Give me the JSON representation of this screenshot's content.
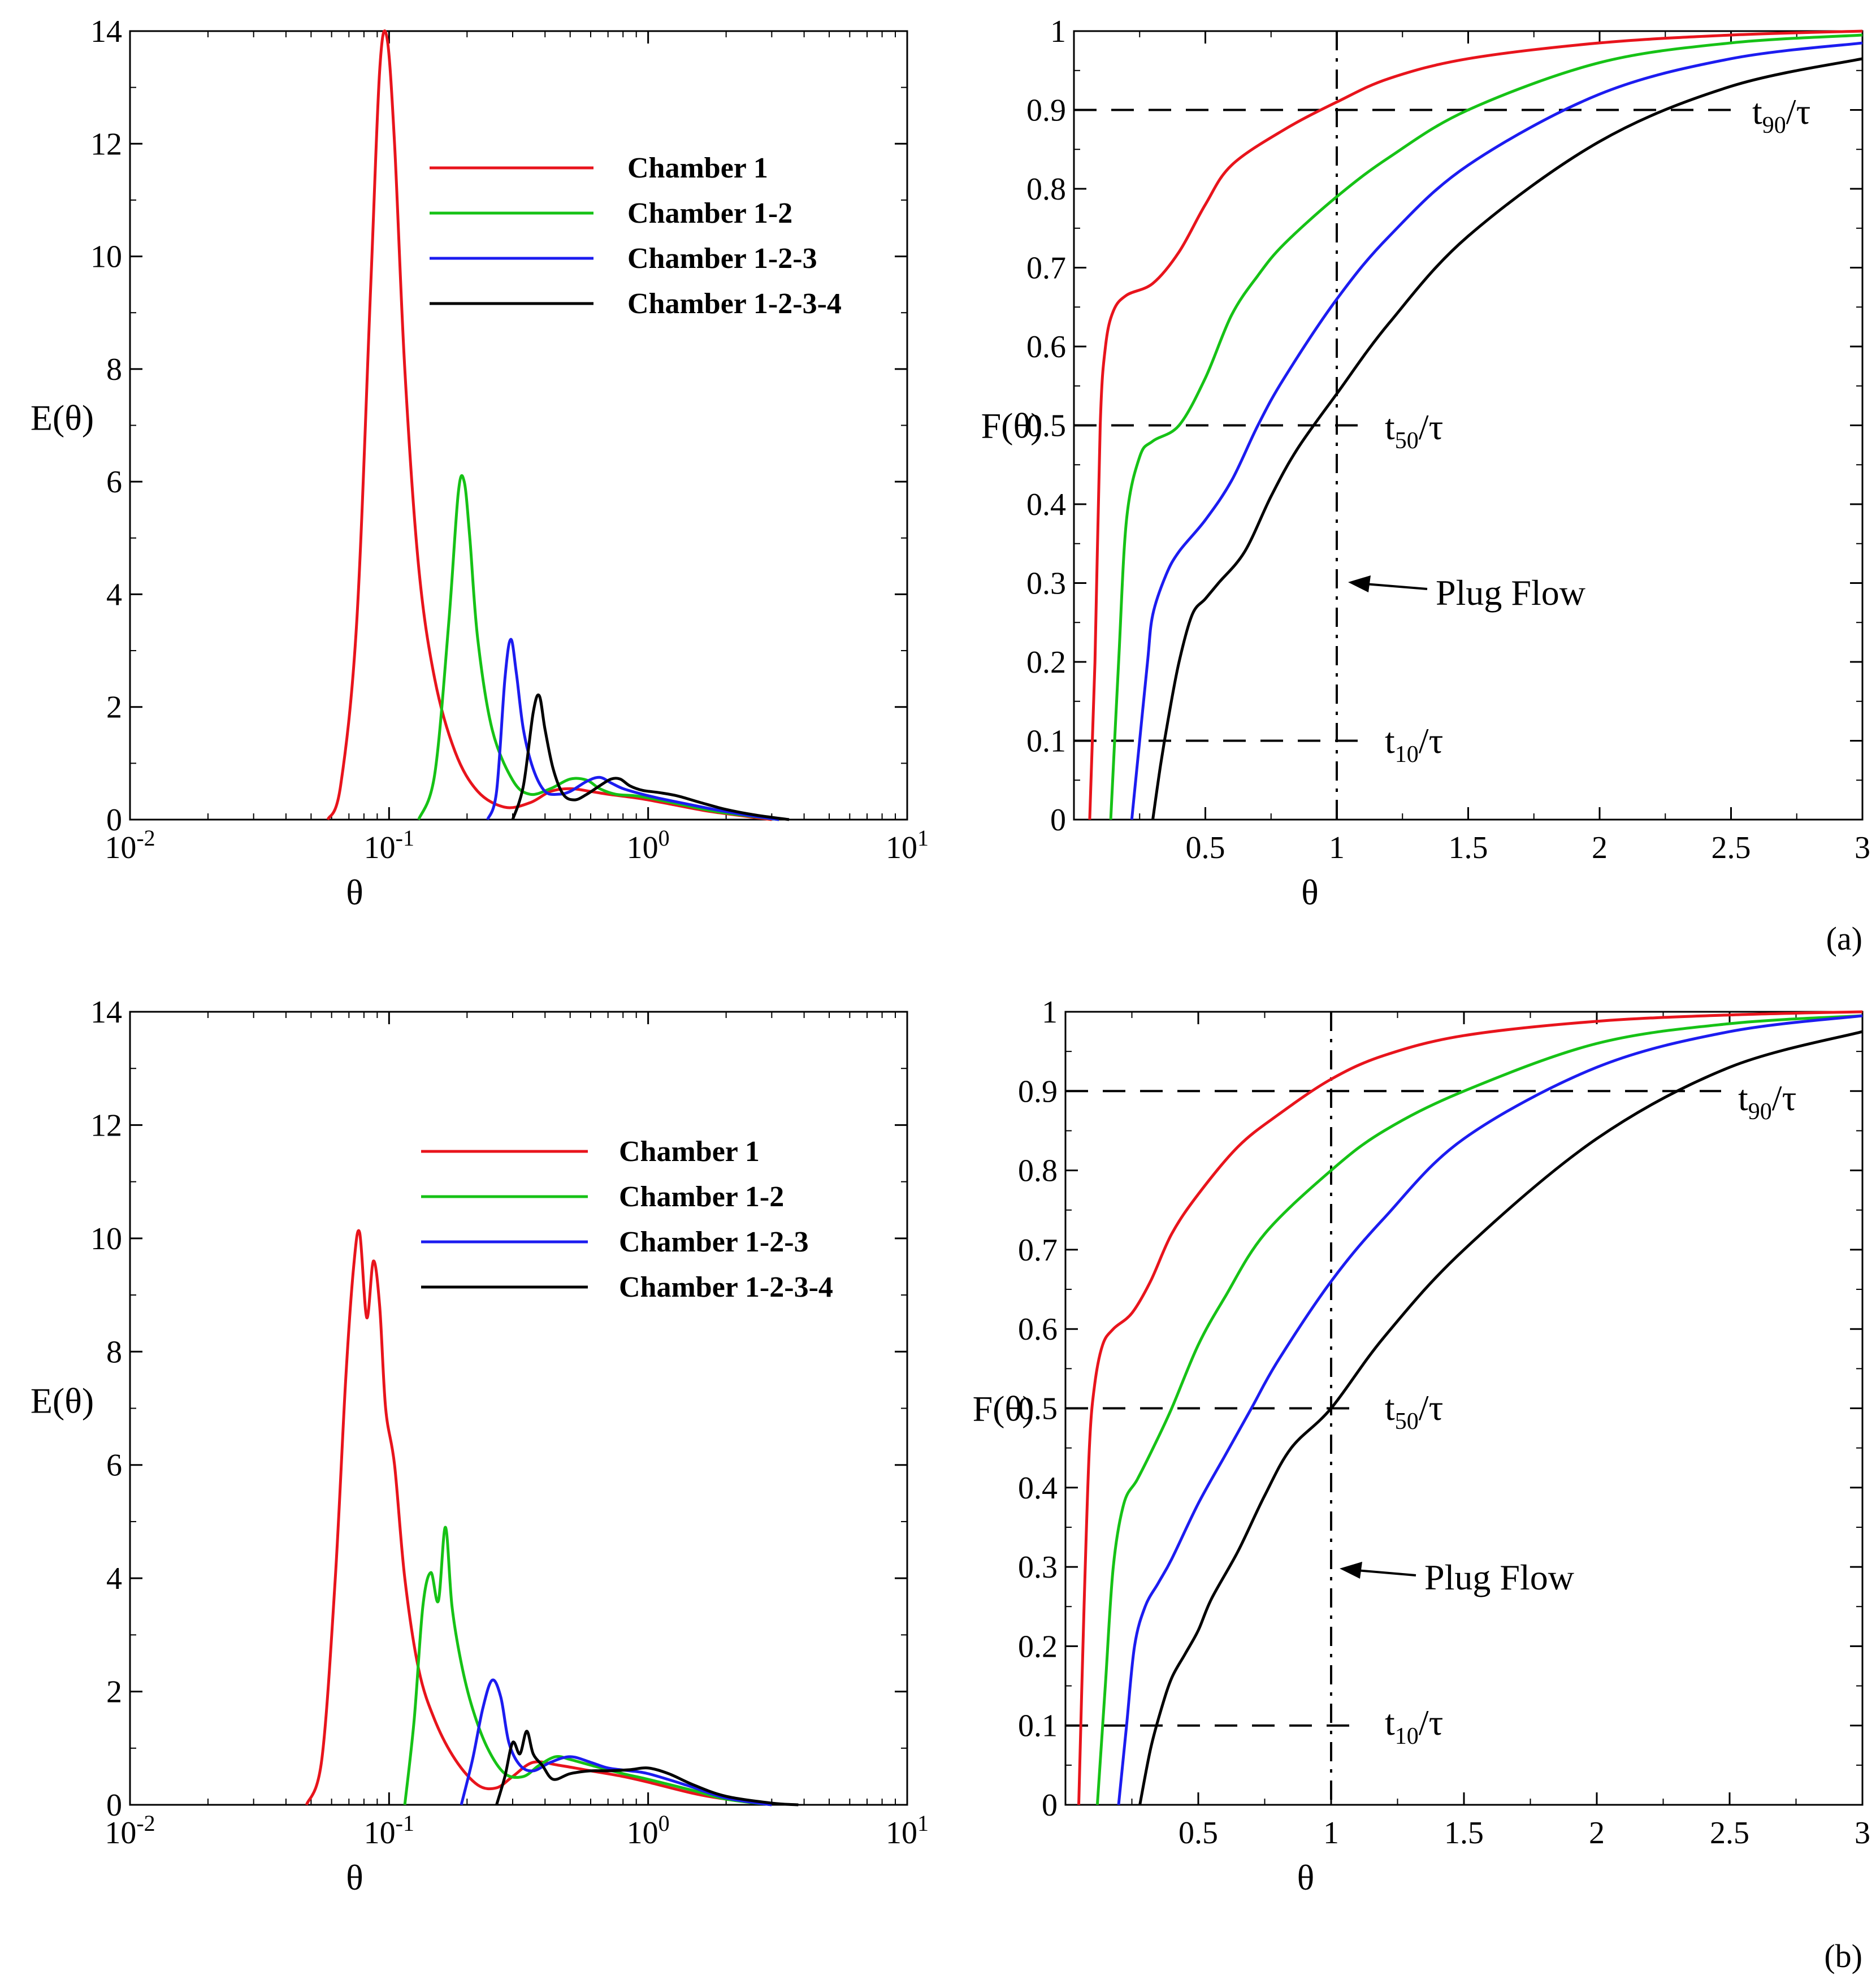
{
  "colors": {
    "chamber1": "#e8141c",
    "chamber12": "#16c216",
    "chamber123": "#1c1cf0",
    "chamber1234": "#000000"
  },
  "legend": [
    "Chamber 1",
    "Chamber 1-2",
    "Chamber 1-2-3",
    "Chamber 1-2-3-4"
  ],
  "panels": [
    {
      "label": "(a)"
    },
    {
      "label": "(b)"
    }
  ],
  "chart_data": [
    {
      "panel": "a-left",
      "type": "line",
      "xlabel": "θ",
      "ylabel": "E(θ)",
      "xscale": "log",
      "xlim": [
        0.01,
        10
      ],
      "ylim": [
        0,
        14
      ],
      "yticks": [
        "0",
        "2",
        "4",
        "6",
        "8",
        "10",
        "12",
        "14"
      ],
      "xticks": [
        {
          "base": "10",
          "exp": "-2"
        },
        {
          "base": "10",
          "exp": "-1"
        },
        {
          "base": "10",
          "exp": "0"
        },
        {
          "base": "10",
          "exp": "1"
        }
      ],
      "series": [
        {
          "name": "Chamber 1",
          "x": [
            0.058,
            0.065,
            0.075,
            0.085,
            0.092,
            0.098,
            0.105,
            0.115,
            0.13,
            0.15,
            0.18,
            0.22,
            0.28,
            0.35,
            0.42,
            0.5,
            0.6,
            0.7,
            0.85,
            1.0,
            1.3,
            1.7,
            2.2,
            3.0
          ],
          "y": [
            0,
            0.6,
            3.5,
            9.5,
            13.3,
            13.9,
            12.0,
            8.0,
            4.5,
            2.5,
            1.2,
            0.5,
            0.22,
            0.3,
            0.5,
            0.55,
            0.5,
            0.45,
            0.4,
            0.35,
            0.25,
            0.15,
            0.08,
            0
          ]
        },
        {
          "name": "Chamber 1-2",
          "x": [
            0.13,
            0.15,
            0.17,
            0.185,
            0.195,
            0.205,
            0.22,
            0.25,
            0.3,
            0.35,
            0.42,
            0.5,
            0.58,
            0.65,
            0.75,
            0.9,
            1.1,
            1.4,
            1.8,
            2.4,
            3.2
          ],
          "y": [
            0,
            0.8,
            3.5,
            5.8,
            6.0,
            5.0,
            3.2,
            1.6,
            0.7,
            0.45,
            0.55,
            0.72,
            0.7,
            0.55,
            0.45,
            0.42,
            0.35,
            0.25,
            0.15,
            0.07,
            0
          ]
        },
        {
          "name": "Chamber 1-2-3",
          "x": [
            0.24,
            0.26,
            0.28,
            0.295,
            0.31,
            0.33,
            0.36,
            0.4,
            0.45,
            0.5,
            0.58,
            0.65,
            0.72,
            0.8,
            0.95,
            1.1,
            1.4,
            1.8,
            2.4,
            3.2
          ],
          "y": [
            0,
            0.5,
            2.5,
            3.2,
            2.6,
            1.6,
            0.9,
            0.5,
            0.45,
            0.5,
            0.68,
            0.75,
            0.65,
            0.55,
            0.45,
            0.38,
            0.28,
            0.18,
            0.08,
            0
          ]
        },
        {
          "name": "Chamber 1-2-3-4",
          "x": [
            0.3,
            0.33,
            0.36,
            0.38,
            0.4,
            0.43,
            0.47,
            0.52,
            0.58,
            0.65,
            0.72,
            0.78,
            0.85,
            0.95,
            1.1,
            1.3,
            1.6,
            2.0,
            2.6,
            3.5
          ],
          "y": [
            0,
            0.6,
            1.9,
            2.2,
            1.6,
            0.9,
            0.45,
            0.35,
            0.45,
            0.6,
            0.72,
            0.72,
            0.6,
            0.52,
            0.48,
            0.42,
            0.3,
            0.18,
            0.08,
            0
          ]
        }
      ]
    },
    {
      "panel": "a-right",
      "type": "line",
      "xlabel": "θ",
      "ylabel": "F(θ)",
      "xlim": [
        0,
        3
      ],
      "ylim": [
        0,
        1
      ],
      "yticks": [
        "0",
        "0.1",
        "0.2",
        "0.3",
        "0.4",
        "0.5",
        "0.6",
        "0.7",
        "0.8",
        "0.9",
        "1"
      ],
      "xticks": [
        "0.5",
        "1",
        "1.5",
        "2",
        "2.5",
        "3"
      ],
      "annotations": {
        "t90": "t",
        "t90sub": "90",
        "t50": "t",
        "t50sub": "50",
        "t10": "t",
        "t10sub": "10",
        "tau": "/τ",
        "plug": "Plug Flow"
      },
      "series": [
        {
          "name": "Chamber 1",
          "x": [
            0.06,
            0.08,
            0.1,
            0.12,
            0.15,
            0.2,
            0.3,
            0.4,
            0.5,
            0.6,
            0.8,
            1.0,
            1.2,
            1.5,
            2.0,
            2.5,
            3.0
          ],
          "y": [
            0,
            0.2,
            0.5,
            0.6,
            0.645,
            0.665,
            0.68,
            0.72,
            0.78,
            0.83,
            0.875,
            0.91,
            0.94,
            0.965,
            0.985,
            0.995,
            1.0
          ]
        },
        {
          "name": "Chamber 1-2",
          "x": [
            0.14,
            0.17,
            0.2,
            0.25,
            0.3,
            0.4,
            0.5,
            0.6,
            0.7,
            0.8,
            1.0,
            1.2,
            1.5,
            2.0,
            2.5,
            3.0
          ],
          "y": [
            0,
            0.2,
            0.38,
            0.46,
            0.48,
            0.5,
            0.56,
            0.64,
            0.69,
            0.73,
            0.79,
            0.84,
            0.9,
            0.96,
            0.985,
            0.995
          ]
        },
        {
          "name": "Chamber 1-2-3",
          "x": [
            0.22,
            0.25,
            0.28,
            0.3,
            0.35,
            0.4,
            0.5,
            0.6,
            0.7,
            0.8,
            1.0,
            1.2,
            1.5,
            2.0,
            2.5,
            3.0
          ],
          "y": [
            0,
            0.1,
            0.2,
            0.26,
            0.31,
            0.34,
            0.38,
            0.43,
            0.5,
            0.56,
            0.66,
            0.74,
            0.83,
            0.92,
            0.965,
            0.985
          ]
        },
        {
          "name": "Chamber 1-2-3-4",
          "x": [
            0.3,
            0.33,
            0.36,
            0.4,
            0.45,
            0.5,
            0.55,
            0.65,
            0.75,
            0.85,
            1.0,
            1.2,
            1.5,
            2.0,
            2.5,
            3.0
          ],
          "y": [
            0,
            0.07,
            0.13,
            0.2,
            0.26,
            0.28,
            0.3,
            0.34,
            0.41,
            0.47,
            0.54,
            0.63,
            0.74,
            0.86,
            0.93,
            0.965
          ]
        }
      ]
    },
    {
      "panel": "b-left",
      "type": "line",
      "xlabel": "θ",
      "ylabel": "E(θ)",
      "xscale": "log",
      "xlim": [
        0.01,
        10
      ],
      "ylim": [
        0,
        14
      ],
      "yticks": [
        "0",
        "2",
        "4",
        "6",
        "8",
        "10",
        "12",
        "14"
      ],
      "xticks": [
        {
          "base": "10",
          "exp": "-2"
        },
        {
          "base": "10",
          "exp": "-1"
        },
        {
          "base": "10",
          "exp": "0"
        },
        {
          "base": "10",
          "exp": "1"
        }
      ],
      "series": [
        {
          "name": "Chamber 1",
          "x": [
            0.048,
            0.055,
            0.062,
            0.068,
            0.073,
            0.077,
            0.082,
            0.087,
            0.092,
            0.097,
            0.105,
            0.115,
            0.13,
            0.15,
            0.18,
            0.22,
            0.26,
            0.3,
            0.36,
            0.45,
            0.6,
            0.8,
            1.0,
            1.5,
            2.0,
            3.0
          ],
          "y": [
            0,
            0.8,
            4.0,
            7.5,
            9.5,
            10.1,
            8.6,
            9.6,
            8.8,
            7.0,
            6.0,
            4.0,
            2.4,
            1.5,
            0.8,
            0.35,
            0.3,
            0.5,
            0.75,
            0.7,
            0.6,
            0.5,
            0.4,
            0.2,
            0.1,
            0
          ]
        },
        {
          "name": "Chamber 1-2",
          "x": [
            0.115,
            0.125,
            0.135,
            0.145,
            0.155,
            0.165,
            0.175,
            0.19,
            0.21,
            0.24,
            0.28,
            0.33,
            0.38,
            0.44,
            0.5,
            0.6,
            0.8,
            1.0,
            1.5,
            2.0,
            3.0
          ],
          "y": [
            0,
            1.5,
            3.5,
            4.1,
            3.6,
            4.9,
            3.5,
            2.5,
            1.7,
            1.0,
            0.55,
            0.5,
            0.7,
            0.85,
            0.8,
            0.7,
            0.55,
            0.45,
            0.25,
            0.1,
            0
          ]
        },
        {
          "name": "Chamber 1-2-3",
          "x": [
            0.19,
            0.21,
            0.23,
            0.25,
            0.27,
            0.29,
            0.32,
            0.36,
            0.42,
            0.5,
            0.6,
            0.7,
            0.85,
            1.0,
            1.4,
            2.0,
            3.0
          ],
          "y": [
            0,
            0.8,
            1.7,
            2.2,
            1.9,
            1.1,
            0.7,
            0.6,
            0.75,
            0.85,
            0.75,
            0.65,
            0.6,
            0.55,
            0.35,
            0.12,
            0
          ]
        },
        {
          "name": "Chamber 1-2-3-4",
          "x": [
            0.26,
            0.28,
            0.3,
            0.32,
            0.34,
            0.36,
            0.39,
            0.43,
            0.5,
            0.6,
            0.7,
            0.85,
            1.0,
            1.2,
            1.5,
            2.0,
            3.0,
            3.8
          ],
          "y": [
            0,
            0.5,
            1.1,
            0.9,
            1.3,
            0.9,
            0.7,
            0.45,
            0.55,
            0.6,
            0.6,
            0.62,
            0.65,
            0.55,
            0.35,
            0.15,
            0.03,
            0
          ]
        }
      ]
    },
    {
      "panel": "b-right",
      "type": "line",
      "xlabel": "θ",
      "ylabel": "F(θ)",
      "xlim": [
        0,
        3
      ],
      "ylim": [
        0,
        1
      ],
      "yticks": [
        "0",
        "0.1",
        "0.2",
        "0.3",
        "0.4",
        "0.5",
        "0.6",
        "0.7",
        "0.8",
        "0.9",
        "1"
      ],
      "xticks": [
        "0.5",
        "1",
        "1.5",
        "2",
        "2.5",
        "3"
      ],
      "annotations": {
        "t90": "t",
        "t90sub": "90",
        "t50": "t",
        "t50sub": "50",
        "t10": "t",
        "t10sub": "10",
        "tau": "/τ",
        "plug": "Plug Flow"
      },
      "series": [
        {
          "name": "Chamber 1",
          "x": [
            0.05,
            0.07,
            0.09,
            0.11,
            0.14,
            0.18,
            0.25,
            0.32,
            0.4,
            0.5,
            0.65,
            0.8,
            1.0,
            1.2,
            1.5,
            2.0,
            2.5,
            3.0
          ],
          "y": [
            0,
            0.25,
            0.45,
            0.53,
            0.58,
            0.6,
            0.62,
            0.66,
            0.72,
            0.77,
            0.83,
            0.87,
            0.915,
            0.945,
            0.97,
            0.988,
            0.996,
            1.0
          ]
        },
        {
          "name": "Chamber 1-2",
          "x": [
            0.12,
            0.15,
            0.18,
            0.22,
            0.27,
            0.33,
            0.4,
            0.5,
            0.6,
            0.75,
            1.0,
            1.2,
            1.5,
            2.0,
            2.5,
            3.0
          ],
          "y": [
            0,
            0.15,
            0.3,
            0.38,
            0.41,
            0.45,
            0.5,
            0.58,
            0.64,
            0.72,
            0.8,
            0.85,
            0.9,
            0.96,
            0.985,
            0.995
          ]
        },
        {
          "name": "Chamber 1-2-3",
          "x": [
            0.2,
            0.23,
            0.26,
            0.3,
            0.35,
            0.4,
            0.5,
            0.6,
            0.7,
            0.8,
            1.0,
            1.2,
            1.5,
            2.0,
            2.5,
            3.0
          ],
          "y": [
            0,
            0.1,
            0.2,
            0.25,
            0.28,
            0.31,
            0.38,
            0.44,
            0.5,
            0.56,
            0.66,
            0.74,
            0.84,
            0.93,
            0.975,
            0.995
          ]
        },
        {
          "name": "Chamber 1-2-3-4",
          "x": [
            0.28,
            0.32,
            0.36,
            0.4,
            0.45,
            0.5,
            0.55,
            0.65,
            0.75,
            0.85,
            1.0,
            1.2,
            1.5,
            2.0,
            2.5,
            3.0
          ],
          "y": [
            0,
            0.07,
            0.12,
            0.16,
            0.19,
            0.22,
            0.26,
            0.32,
            0.39,
            0.45,
            0.5,
            0.59,
            0.7,
            0.84,
            0.93,
            0.975
          ]
        }
      ]
    }
  ]
}
